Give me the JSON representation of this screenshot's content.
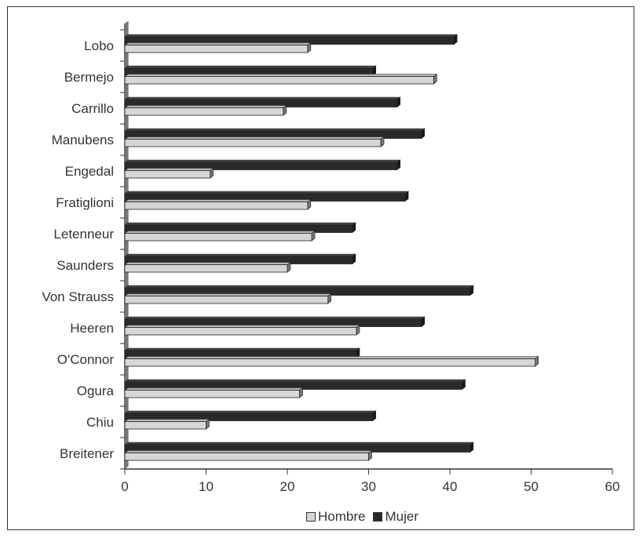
{
  "chart_data": {
    "type": "bar",
    "orientation": "horizontal",
    "categories": [
      "Lobo",
      "Bermejo",
      "Carrillo",
      "Manubens",
      "Engedal",
      "Fratiglioni",
      "Letenneur",
      "Saunders",
      "Von Strauss",
      "Heeren",
      "O'Connor",
      "Ogura",
      "Chiu",
      "Breitener"
    ],
    "series": [
      {
        "name": "Hombre",
        "color": "#d6d6d6",
        "values": [
          22.5,
          38,
          19.5,
          31.5,
          10.5,
          22.5,
          23,
          20,
          25,
          28.5,
          50.5,
          21.5,
          10,
          30
        ]
      },
      {
        "name": "Mujer",
        "color": "#2a2a2a",
        "values": [
          40.5,
          30.5,
          33.5,
          36.5,
          33.5,
          34.5,
          28,
          28,
          42.5,
          36.5,
          28.5,
          41.5,
          30.5,
          42.5
        ]
      }
    ],
    "xlim": [
      0,
      60
    ],
    "xticks": [
      "0",
      "10",
      "20",
      "30",
      "40",
      "50",
      "60"
    ],
    "legend_position": "bottom-center",
    "grid": false,
    "style": "3d"
  }
}
